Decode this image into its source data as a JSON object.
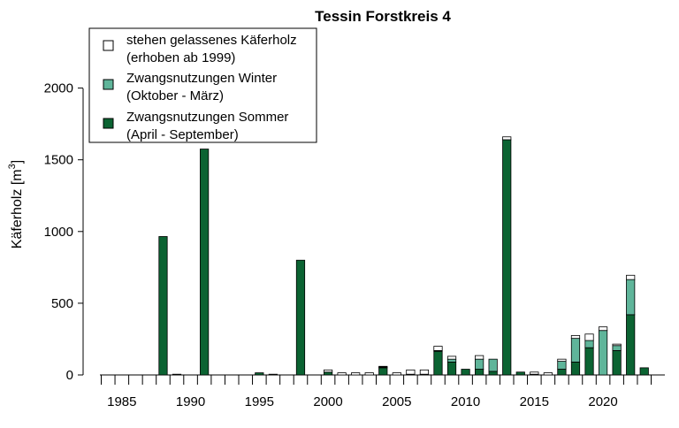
{
  "chart_data": {
    "type": "bar",
    "stacked": true,
    "title": "Tessin Forstkreis 4",
    "xlabel": "",
    "ylabel": "Käferholz [m",
    "ylabel_sup": "3",
    "ylabel_end": "]",
    "ylim": [
      0,
      2400
    ],
    "yticks": [
      0,
      500,
      1000,
      1500,
      2000
    ],
    "xlim": [
      1984,
      2024
    ],
    "xtick_labels": [
      1985,
      1990,
      1995,
      2000,
      2005,
      2010,
      2015,
      2020
    ],
    "grid": false,
    "legend_position": "top-left",
    "colors": {
      "sommer": "#0b6332",
      "winter": "#5fb59a",
      "stehen": "#ffffff",
      "outline": "#000000"
    },
    "legend": [
      {
        "key": "stehen",
        "line1": "stehen gelassenes Käferholz",
        "line2": "(erhoben ab 1999)"
      },
      {
        "key": "winter",
        "line1": "Zwangsnutzungen Winter",
        "line2": "(Oktober - März)"
      },
      {
        "key": "sommer",
        "line1": "Zwangsnutzungen Sommer",
        "line2": "(April - September)"
      }
    ],
    "years": [
      1984,
      1985,
      1986,
      1987,
      1988,
      1989,
      1990,
      1991,
      1992,
      1993,
      1994,
      1995,
      1996,
      1997,
      1998,
      1999,
      2000,
      2001,
      2002,
      2003,
      2004,
      2005,
      2006,
      2007,
      2008,
      2009,
      2010,
      2011,
      2012,
      2013,
      2014,
      2015,
      2016,
      2017,
      2018,
      2019,
      2020,
      2021,
      2022,
      2023,
      2024
    ],
    "series": [
      {
        "name": "Zwangsnutzungen Sommer (April - September)",
        "key": "sommer",
        "values": [
          0,
          0,
          0,
          0,
          965,
          5,
          0,
          1575,
          0,
          0,
          0,
          15,
          5,
          0,
          800,
          0,
          20,
          0,
          0,
          0,
          50,
          0,
          5,
          5,
          165,
          90,
          40,
          40,
          25,
          1640,
          20,
          5,
          0,
          40,
          90,
          190,
          0,
          170,
          420,
          50,
          0
        ]
      },
      {
        "name": "Zwangsnutzungen Winter (Oktober - März)",
        "key": "winter",
        "values": [
          0,
          0,
          0,
          0,
          0,
          0,
          0,
          0,
          0,
          0,
          0,
          0,
          0,
          0,
          0,
          0,
          0,
          0,
          0,
          0,
          5,
          0,
          0,
          0,
          5,
          20,
          0,
          70,
          85,
          0,
          0,
          0,
          0,
          55,
          165,
          50,
          310,
          35,
          245,
          0,
          0
        ]
      },
      {
        "name": "stehen gelassenes Käferholz (erhoben ab 1999)",
        "key": "stehen",
        "values": [
          0,
          0,
          0,
          0,
          0,
          0,
          0,
          0,
          0,
          0,
          0,
          0,
          0,
          0,
          0,
          0,
          15,
          15,
          15,
          15,
          5,
          15,
          30,
          30,
          30,
          20,
          0,
          25,
          0,
          20,
          0,
          15,
          15,
          15,
          20,
          45,
          25,
          10,
          30,
          0,
          0
        ]
      }
    ]
  }
}
